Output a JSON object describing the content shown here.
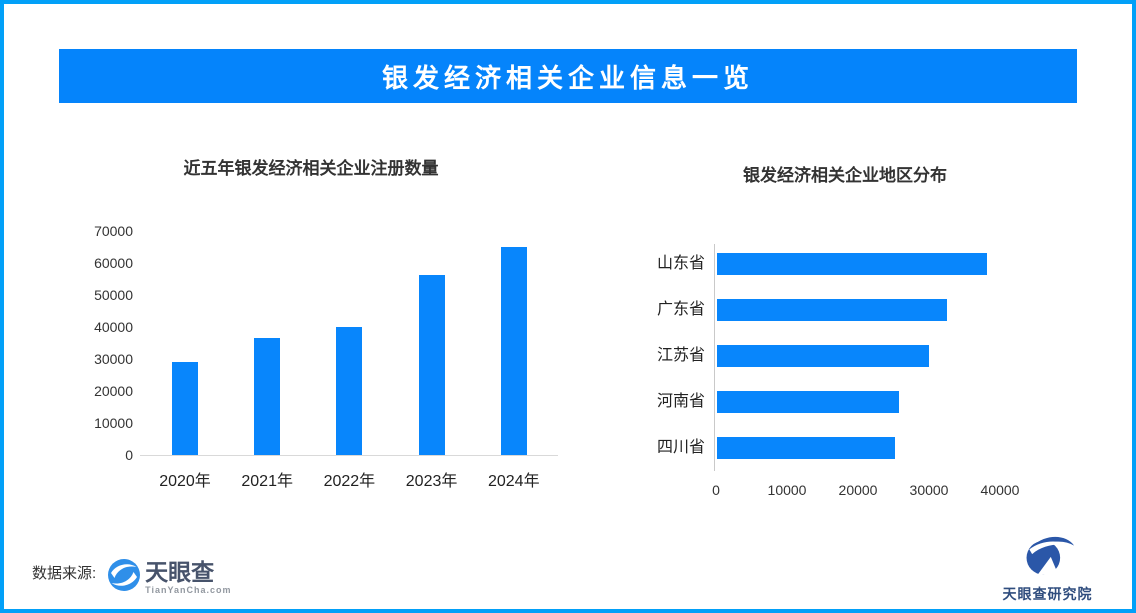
{
  "page": {
    "title": "银发经济相关企业信息一览",
    "source_label": "数据来源:",
    "accent_colors": {
      "border": "#02A0F8",
      "banner": "#0584FB",
      "bar": "#0886FC"
    }
  },
  "logos": {
    "tianyancha": {
      "name": "天眼查",
      "url_text": "TianYanCha.com"
    },
    "research": {
      "name": "天眼查研究院"
    }
  },
  "chart_data": [
    {
      "type": "bar",
      "orientation": "vertical",
      "title": "近五年银发经济相关企业注册数量",
      "categories": [
        "2020年",
        "2021年",
        "2022年",
        "2023年",
        "2024年"
      ],
      "values": [
        29000,
        36700,
        40100,
        56300,
        65100
      ],
      "xlabel": "",
      "ylabel": "",
      "ylim": [
        0,
        70000
      ],
      "yticks": [
        0,
        10000,
        20000,
        30000,
        40000,
        50000,
        60000,
        70000
      ],
      "grid": false,
      "legend": false,
      "bar_color": "#0886FC"
    },
    {
      "type": "bar",
      "orientation": "horizontal",
      "title": "银发经济相关企业地区分布",
      "categories": [
        "山东省",
        "广东省",
        "江苏省",
        "河南省",
        "四川省"
      ],
      "values": [
        38000,
        32400,
        29800,
        25600,
        25000
      ],
      "xlabel": "",
      "ylabel": "",
      "xlim": [
        0,
        53000
      ],
      "xticks": [
        0,
        10000,
        20000,
        30000,
        40000
      ],
      "grid": false,
      "legend": false,
      "bar_color": "#0886FC"
    }
  ]
}
